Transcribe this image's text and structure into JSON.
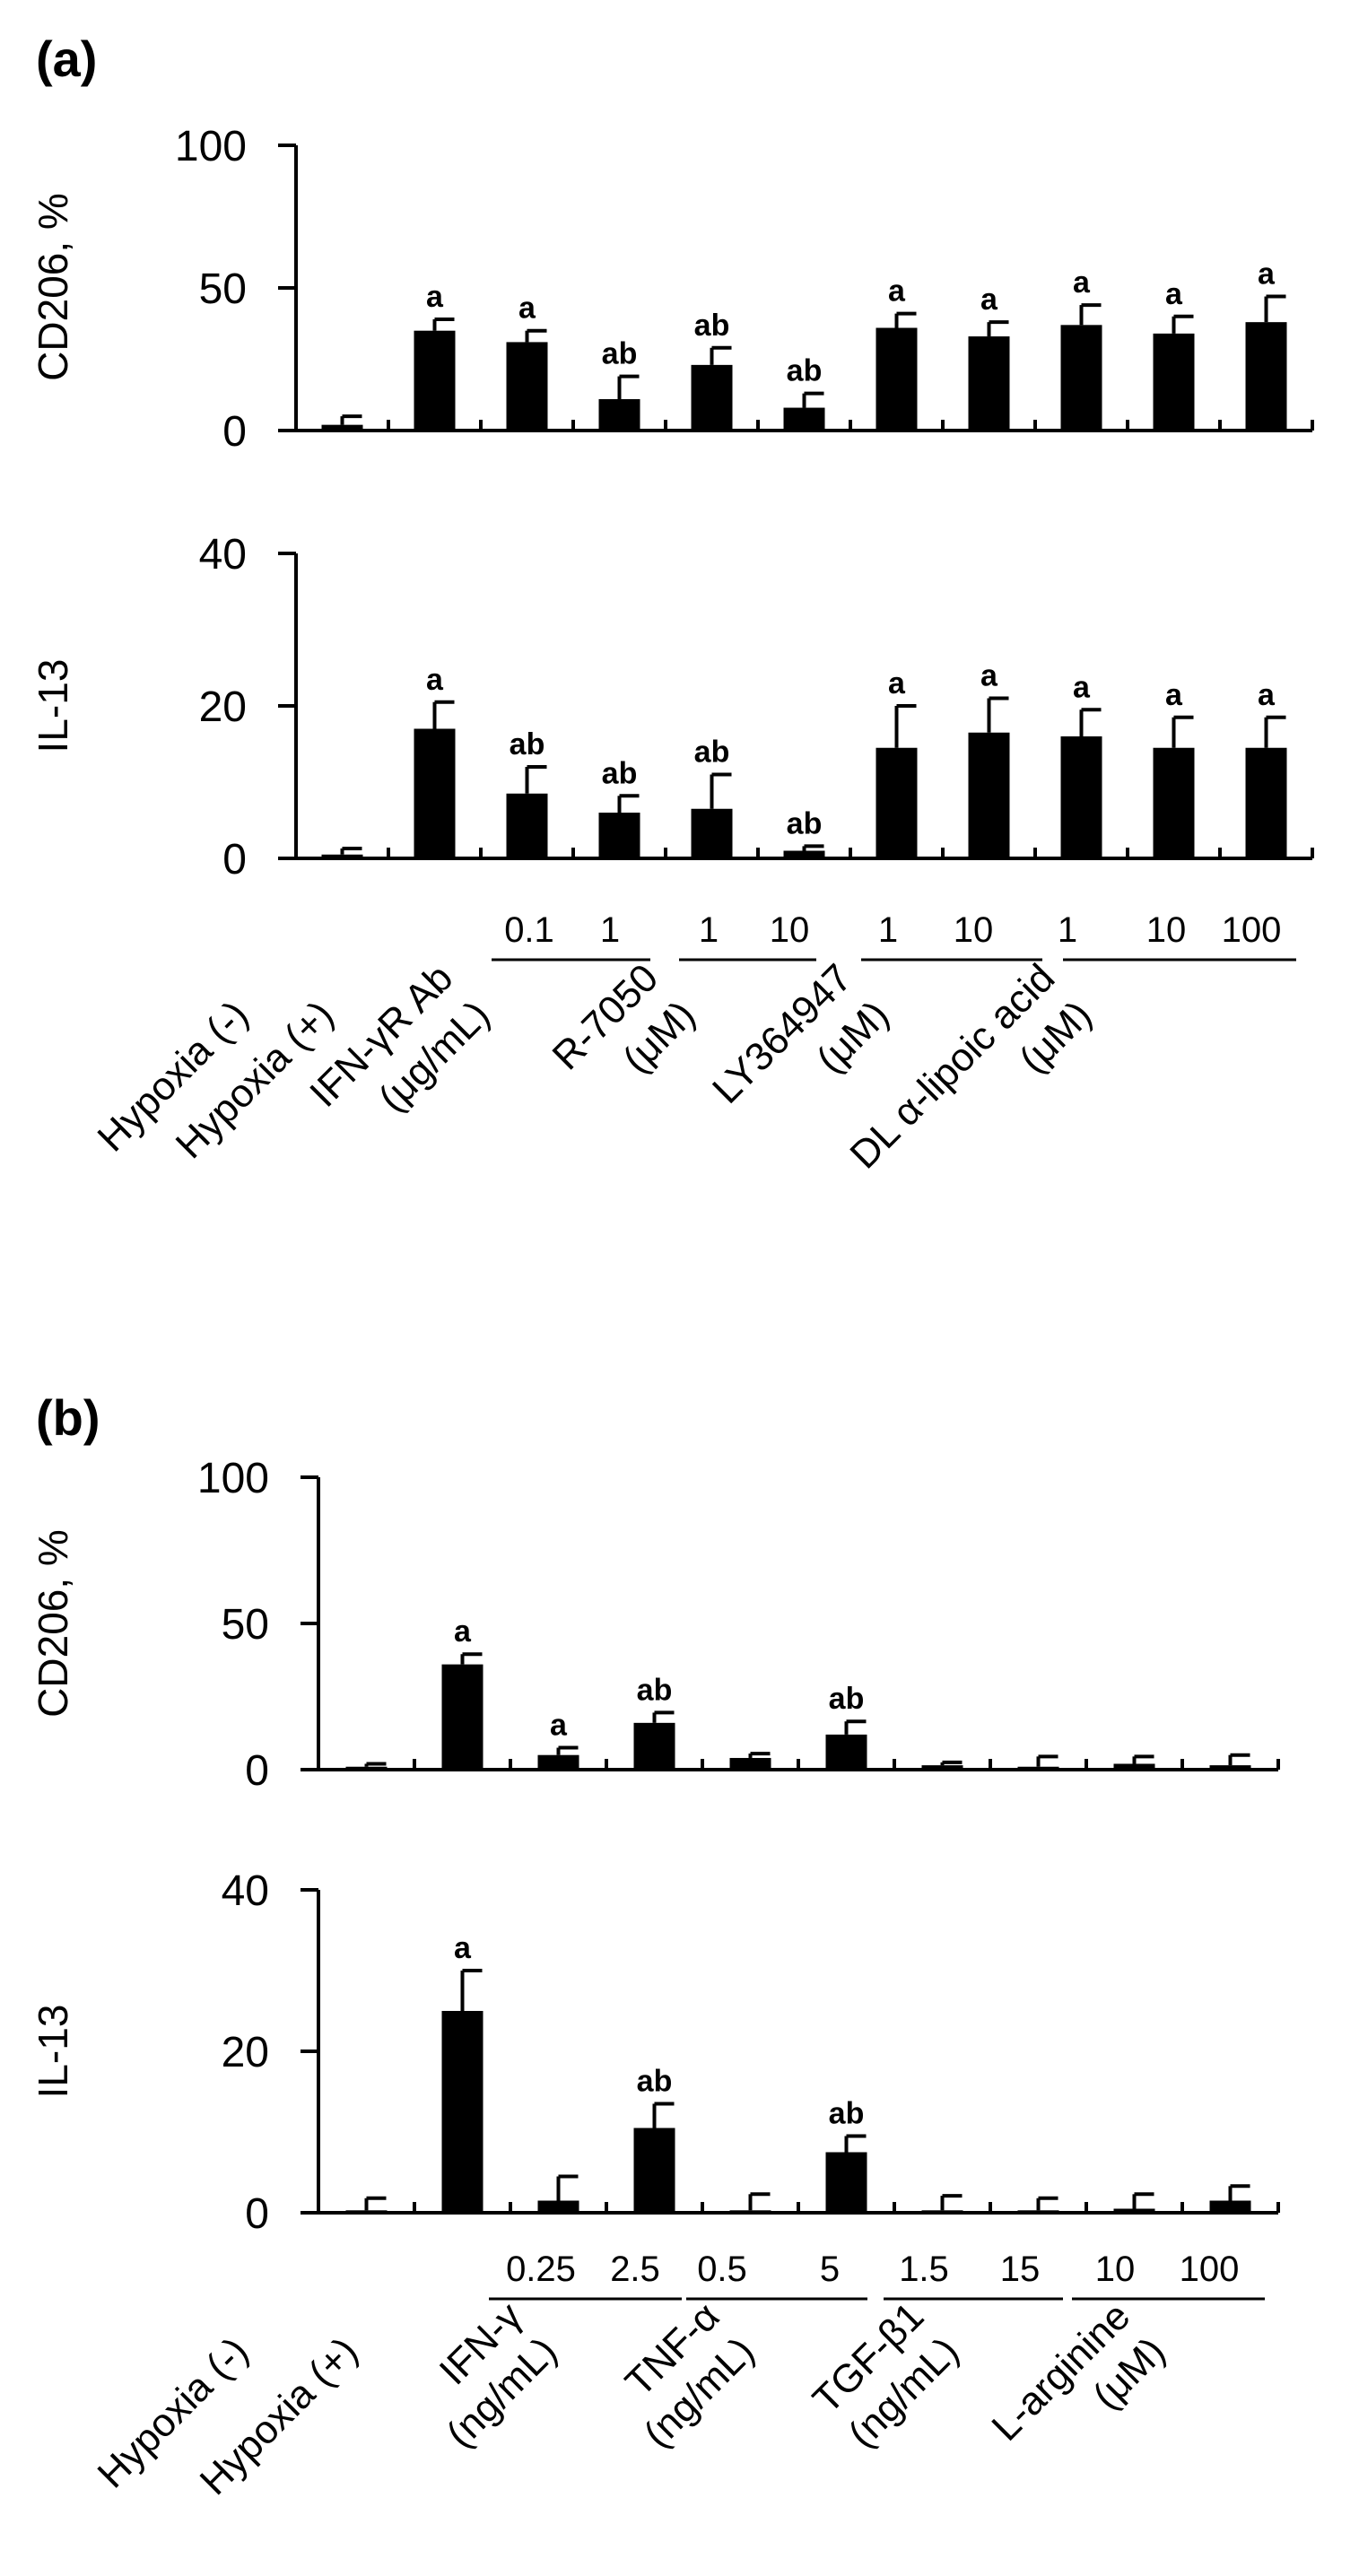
{
  "panels": [
    {
      "id": "a",
      "label": "(a)",
      "group_labels": [
        [
          "Hypoxia (-)"
        ],
        [
          "Hypoxia (+)"
        ],
        [
          "IFN-γR Ab",
          "(μg/mL)"
        ],
        [
          "R-7050",
          "(μM)"
        ],
        [
          "LY364947",
          "(μM)"
        ],
        [
          "DL α-lipoic acid",
          "(μM)"
        ]
      ],
      "dose_labels": [
        "0.1",
        "1",
        "1",
        "10",
        "1",
        "10",
        "1",
        "10",
        "100"
      ],
      "charts": [
        {
          "type": "bar",
          "ylabel": "CD206, %",
          "ylim": [
            0,
            100
          ],
          "yticks": [
            "0",
            "50",
            "100"
          ],
          "values": [
            2,
            35,
            31,
            11,
            23,
            8,
            36,
            33,
            37,
            34,
            38
          ],
          "errors": [
            3,
            4,
            4,
            8,
            6,
            5,
            5,
            5,
            7,
            6,
            9
          ],
          "sig": [
            "",
            "a",
            "a",
            "ab",
            "ab",
            "ab",
            "a",
            "a",
            "a",
            "a",
            "a"
          ]
        },
        {
          "type": "bar",
          "ylabel": "IL-13",
          "ylim": [
            0,
            40
          ],
          "yticks": [
            "0",
            "20",
            "40"
          ],
          "values": [
            0.5,
            17,
            8.5,
            6,
            6.5,
            1,
            14.5,
            16.5,
            16,
            14.5,
            14.5
          ],
          "errors": [
            0.8,
            3.5,
            3.5,
            2.2,
            4.5,
            0.6,
            5.5,
            4.5,
            3.5,
            4,
            4
          ],
          "sig": [
            "",
            "a",
            "ab",
            "ab",
            "ab",
            "ab",
            "a",
            "a",
            "a",
            "a",
            "a"
          ]
        }
      ]
    },
    {
      "id": "b",
      "label": "(b)",
      "group_labels": [
        [
          "Hypoxia (-)"
        ],
        [
          "Hypoxia (+)"
        ],
        [
          "IFN-γ",
          "(ng/mL)"
        ],
        [
          "TNF-α",
          "(ng/mL)"
        ],
        [
          "TGF-β1",
          "(ng/mL)"
        ],
        [
          "L-arginine",
          "(μM)"
        ]
      ],
      "dose_labels": [
        "0.25",
        "2.5",
        "0.5",
        "5",
        "1.5",
        "15",
        "10",
        "100"
      ],
      "charts": [
        {
          "type": "bar",
          "ylabel": "CD206, %",
          "ylim": [
            0,
            100
          ],
          "yticks": [
            "0",
            "50",
            "100"
          ],
          "values": [
            1,
            36,
            5,
            16,
            4,
            12,
            1.5,
            1,
            2,
            1.5
          ],
          "errors": [
            1,
            3.5,
            2.5,
            3.5,
            1.5,
            4.5,
            1,
            3.5,
            2.5,
            3.5
          ],
          "sig": [
            "",
            "a",
            "a",
            "ab",
            "",
            "ab",
            "",
            "",
            "",
            ""
          ]
        },
        {
          "type": "bar",
          "ylabel": "IL-13",
          "ylim": [
            0,
            40
          ],
          "yticks": [
            "0",
            "20",
            "40"
          ],
          "values": [
            0.3,
            25,
            1.5,
            10.5,
            0.3,
            7.5,
            0.3,
            0.3,
            0.5,
            1.5
          ],
          "errors": [
            1.5,
            5,
            3,
            3,
            2,
            2,
            1.8,
            1.5,
            1.8,
            1.8
          ],
          "sig": [
            "",
            "a",
            "",
            "ab",
            "",
            "ab",
            "",
            "",
            "",
            ""
          ]
        }
      ]
    }
  ],
  "chart_data": [
    {
      "type": "bar",
      "panel": "(a)",
      "ylabel": "CD206, %",
      "ylim": [
        0,
        100
      ],
      "categories": [
        "Hypoxia (-)",
        "Hypoxia (+)",
        "IFN-γR Ab 0.1",
        "IFN-γR Ab 1",
        "R-7050 1",
        "R-7050 10",
        "LY364947 1",
        "LY364947 10",
        "DL α-lipoic acid 1",
        "DL α-lipoic acid 10",
        "DL α-lipoic acid 100"
      ],
      "values": [
        2,
        35,
        31,
        11,
        23,
        8,
        36,
        33,
        37,
        34,
        38
      ],
      "errors": [
        3,
        4,
        4,
        8,
        6,
        5,
        5,
        5,
        7,
        6,
        9
      ]
    },
    {
      "type": "bar",
      "panel": "(a)",
      "ylabel": "IL-13",
      "ylim": [
        0,
        40
      ],
      "categories": [
        "Hypoxia (-)",
        "Hypoxia (+)",
        "IFN-γR Ab 0.1",
        "IFN-γR Ab 1",
        "R-7050 1",
        "R-7050 10",
        "LY364947 1",
        "LY364947 10",
        "DL α-lipoic acid 1",
        "DL α-lipoic acid 10",
        "DL α-lipoic acid 100"
      ],
      "values": [
        0.5,
        17,
        8.5,
        6,
        6.5,
        1,
        14.5,
        16.5,
        16,
        14.5,
        14.5
      ],
      "errors": [
        0.8,
        3.5,
        3.5,
        2.2,
        4.5,
        0.6,
        5.5,
        4.5,
        3.5,
        4,
        4
      ]
    },
    {
      "type": "bar",
      "panel": "(b)",
      "ylabel": "CD206, %",
      "ylim": [
        0,
        100
      ],
      "categories": [
        "Hypoxia (-)",
        "Hypoxia (+)",
        "IFN-γ 0.25",
        "IFN-γ 2.5",
        "TNF-α 0.5",
        "TNF-α 5",
        "TGF-β1 1.5",
        "TGF-β1 15",
        "L-arginine 10",
        "L-arginine 100"
      ],
      "values": [
        1,
        36,
        5,
        16,
        4,
        12,
        1.5,
        1,
        2,
        1.5
      ],
      "errors": [
        1,
        3.5,
        2.5,
        3.5,
        1.5,
        4.5,
        1,
        3.5,
        2.5,
        3.5
      ]
    },
    {
      "type": "bar",
      "panel": "(b)",
      "ylabel": "IL-13",
      "ylim": [
        0,
        40
      ],
      "categories": [
        "Hypoxia (-)",
        "Hypoxia (+)",
        "IFN-γ 0.25",
        "IFN-γ 2.5",
        "TNF-α 0.5",
        "TNF-α 5",
        "TGF-β1 1.5",
        "TGF-β1 15",
        "L-arginine 10",
        "L-arginine 100"
      ],
      "values": [
        0.3,
        25,
        1.5,
        10.5,
        0.3,
        7.5,
        0.3,
        0.3,
        0.5,
        1.5
      ],
      "errors": [
        1.5,
        5,
        3,
        3,
        2,
        2,
        1.8,
        1.5,
        1.8,
        1.8
      ]
    }
  ]
}
